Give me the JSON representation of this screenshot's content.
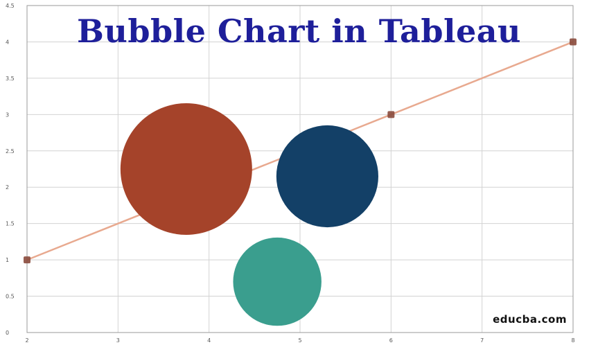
{
  "chart_data": {
    "type": "scatter",
    "title": "Bubble Chart in Tableau",
    "xlabel": "",
    "ylabel": "",
    "xlim": [
      2,
      8
    ],
    "ylim": [
      0,
      4.5
    ],
    "x_ticks": [
      "2",
      "3",
      "4",
      "5",
      "6",
      "7",
      "8"
    ],
    "y_ticks": [
      "0",
      "0.5",
      "1",
      "1.5",
      "2",
      "2.5",
      "3",
      "3.5",
      "4",
      "4.5"
    ],
    "grid": true,
    "line_series": {
      "x": [
        2,
        6,
        8
      ],
      "y": [
        1,
        3,
        4
      ],
      "color": "#e8a98f",
      "marker_color": "#8a4a3c"
    },
    "bubbles": [
      {
        "x": 3.75,
        "y": 2.25,
        "size": 1.0,
        "color": "#a5432a"
      },
      {
        "x": 5.3,
        "y": 2.15,
        "size": 0.6,
        "color": "#134067"
      },
      {
        "x": 4.75,
        "y": 0.7,
        "size": 0.45,
        "color": "#3a9e8e"
      }
    ]
  },
  "title_color": "#1e1f9a",
  "watermark": "educba.com"
}
